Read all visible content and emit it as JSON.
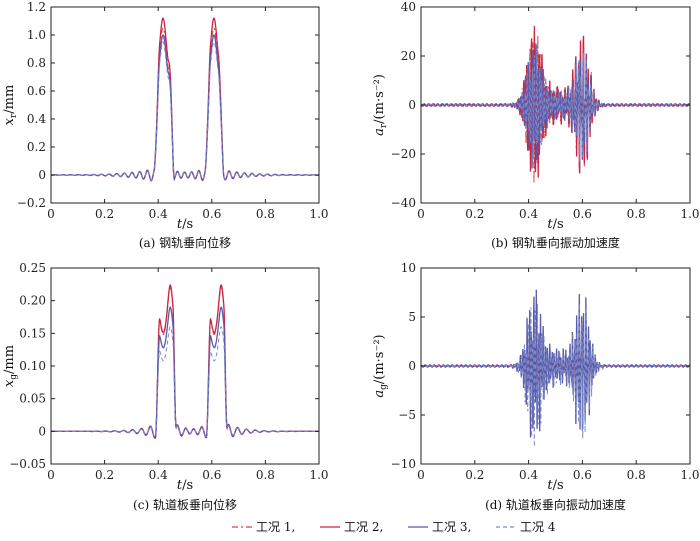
{
  "chart_data": [
    {
      "type": "line",
      "caption": "(a) 钢轨垂向位移",
      "ylabel_var": "x",
      "ylabel_sub": "r",
      "ylabel_unit": "/mm",
      "xlabel_var": "t",
      "xlabel_unit": "/s",
      "xlim": [
        0,
        1.0
      ],
      "ylim": [
        -0.2,
        1.2
      ],
      "xticks": [
        0,
        0.2,
        0.4,
        0.6,
        0.8,
        1.0
      ],
      "xtick_labels": [
        "0",
        "0.2",
        "0.4",
        "0.6",
        "0.8",
        "1.0"
      ],
      "yticks": [
        -0.2,
        0,
        0.2,
        0.4,
        0.6,
        0.8,
        1.0,
        1.2
      ],
      "ytick_labels": [
        "−0.2",
        "0",
        "0.2",
        "0.4",
        "0.6",
        "0.8",
        "1.0",
        "1.2"
      ],
      "series": [
        {
          "name": "工况 1",
          "color": "#d2463c",
          "dash": "6,3,2,3",
          "peak": 1.05,
          "trough": -0.1,
          "kind": "disp"
        },
        {
          "name": "工况 2",
          "color": "#cc2244",
          "dash": "",
          "peak": 1.12,
          "trough": -0.11,
          "kind": "disp"
        },
        {
          "name": "工况 3",
          "color": "#5a5aa8",
          "dash": "",
          "peak": 1.0,
          "trough": -0.1,
          "kind": "disp"
        },
        {
          "name": "工况 4",
          "color": "#7a8ac8",
          "dash": "4,3",
          "peak": 0.95,
          "trough": -0.09,
          "kind": "disp"
        }
      ]
    },
    {
      "type": "line",
      "caption": "(b) 钢轨垂向振动加速度",
      "ylabel_var": "a",
      "ylabel_sub": "r",
      "ylabel_unit": "/(m·s⁻²)",
      "xlabel_var": "t",
      "xlabel_unit": "/s",
      "xlim": [
        0,
        1.0
      ],
      "ylim": [
        -40,
        40
      ],
      "xticks": [
        0,
        0.2,
        0.4,
        0.6,
        0.8,
        1.0
      ],
      "xtick_labels": [
        "0",
        "0.2",
        "0.4",
        "0.6",
        "0.8",
        "1.0"
      ],
      "yticks": [
        -40,
        -20,
        0,
        20,
        40
      ],
      "ytick_labels": [
        "−40",
        "−20",
        "0",
        "20",
        "40"
      ],
      "series": [
        {
          "name": "工况 1",
          "color": "#d2463c",
          "dash": "6,3,2,3",
          "peak": 30,
          "trough": -30,
          "kind": "acc"
        },
        {
          "name": "工况 2",
          "color": "#cc2244",
          "dash": "",
          "peak": 32,
          "trough": -32,
          "kind": "acc"
        },
        {
          "name": "工况 3",
          "color": "#5a5aa8",
          "dash": "",
          "peak": 26,
          "trough": -26,
          "kind": "acc"
        },
        {
          "name": "工况 4",
          "color": "#7a8ac8",
          "dash": "4,3",
          "peak": 24,
          "trough": -24,
          "kind": "acc"
        }
      ]
    },
    {
      "type": "line",
      "caption": "(c) 轨道板垂向位移",
      "ylabel_var": "x",
      "ylabel_sub": "g",
      "ylabel_unit": "/mm",
      "xlabel_var": "t",
      "xlabel_unit": "/s",
      "xlim": [
        0,
        1.0
      ],
      "ylim": [
        -0.05,
        0.25
      ],
      "xticks": [
        0,
        0.2,
        0.4,
        0.6,
        0.8,
        1.0
      ],
      "xtick_labels": [
        "0",
        "0.2",
        "0.4",
        "0.6",
        "0.8",
        "1.0"
      ],
      "yticks": [
        -0.05,
        0,
        0.05,
        0.1,
        0.15,
        0.2,
        0.25
      ],
      "ytick_labels": [
        "−0.05",
        "0",
        "0.05",
        "0.10",
        "0.15",
        "0.20",
        "0.25"
      ],
      "series": [
        {
          "name": "工况 1",
          "color": "#d2463c",
          "dash": "6,3,2,3",
          "peak": 0.22,
          "trough": -0.012,
          "kind": "slab"
        },
        {
          "name": "工况 2",
          "color": "#cc2244",
          "dash": "",
          "peak": 0.224,
          "trough": -0.012,
          "kind": "slab"
        },
        {
          "name": "工况 3",
          "color": "#5a5aa8",
          "dash": "",
          "peak": 0.19,
          "trough": -0.01,
          "kind": "slab"
        },
        {
          "name": "工况 4",
          "color": "#7a8ac8",
          "dash": "4,3",
          "peak": 0.16,
          "trough": -0.01,
          "kind": "slab"
        }
      ]
    },
    {
      "type": "line",
      "caption": "(d) 轨道板垂向振动加速度",
      "ylabel_var": "a",
      "ylabel_sub": "g",
      "ylabel_unit": "/(m·s⁻²)",
      "xlabel_var": "t",
      "xlabel_unit": "/s",
      "xlim": [
        0,
        1.0
      ],
      "ylim": [
        -10,
        10
      ],
      "xticks": [
        0,
        0.2,
        0.4,
        0.6,
        0.8,
        1.0
      ],
      "xtick_labels": [
        "0",
        "0.2",
        "0.4",
        "0.6",
        "0.8",
        "1.0"
      ],
      "yticks": [
        -10,
        -5,
        0,
        5,
        10
      ],
      "ytick_labels": [
        "−10",
        "−5",
        "0",
        "5",
        "10"
      ],
      "series": [
        {
          "name": "工况 1",
          "color": "#d2463c",
          "dash": "6,3,2,3",
          "peak": 2.5,
          "trough": -2.5,
          "kind": "acc"
        },
        {
          "name": "工况 2",
          "color": "#cc2244",
          "dash": "",
          "peak": 2.0,
          "trough": -2.0,
          "kind": "acc"
        },
        {
          "name": "工况 3",
          "color": "#5a5aa8",
          "dash": "",
          "peak": 8.0,
          "trough": -8.0,
          "kind": "acc"
        },
        {
          "name": "工况 4",
          "color": "#7a8ac8",
          "dash": "4,3",
          "peak": 6.5,
          "trough": -8.5,
          "kind": "acc"
        }
      ]
    }
  ],
  "legend": {
    "items": [
      {
        "label": "工况 1,",
        "color": "#d2463c",
        "dash": "6,3,2,3"
      },
      {
        "label": "工况 2,",
        "color": "#cc2244",
        "dash": ""
      },
      {
        "label": "工况 3,",
        "color": "#5a5aa8",
        "dash": ""
      },
      {
        "label": "工况 4",
        "color": "#7a8ac8",
        "dash": "4,3"
      }
    ]
  }
}
